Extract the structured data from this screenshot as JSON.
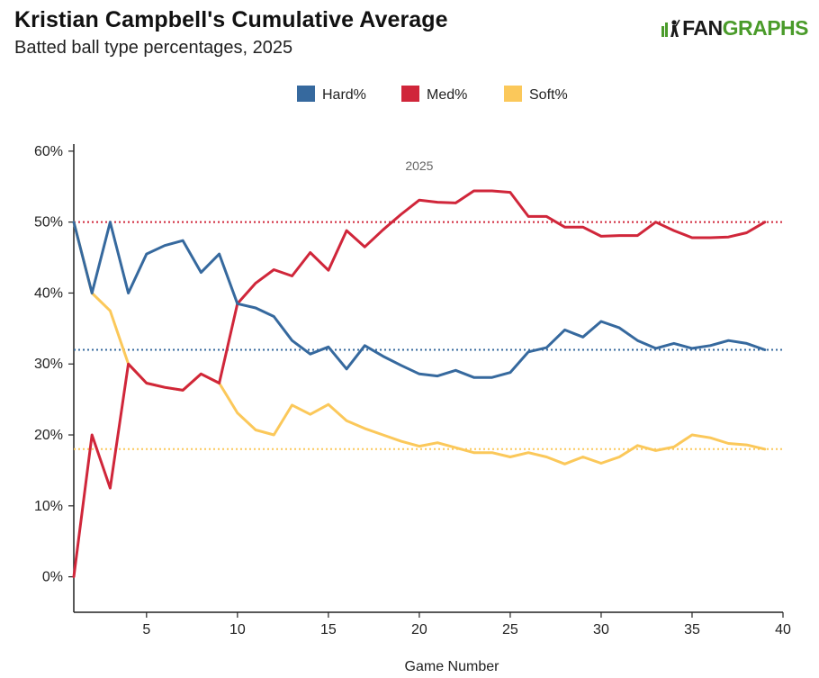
{
  "header": {
    "title": "Kristian Campbell's Cumulative Average",
    "subtitle": "Batted ball type percentages, 2025",
    "logo_part1": "FAN",
    "logo_part2": "GRAPHS"
  },
  "chart_data": {
    "type": "line",
    "title": "Kristian Campbell's Cumulative Average",
    "subtitle": "Batted ball type percentages, 2025",
    "xlabel": "Game Number",
    "ylabel": "",
    "xlim": [
      1,
      40
    ],
    "ylim": [
      -5,
      61
    ],
    "x_ticks": [
      5,
      10,
      15,
      20,
      25,
      30,
      35,
      40
    ],
    "y_ticks": [
      0,
      10,
      20,
      30,
      40,
      50,
      60
    ],
    "y_tick_format": "%",
    "legend_position": "top-center",
    "annotation": "2025",
    "x": [
      1,
      2,
      3,
      4,
      5,
      6,
      7,
      8,
      9,
      10,
      11,
      12,
      13,
      14,
      15,
      16,
      17,
      18,
      19,
      20,
      21,
      22,
      23,
      24,
      25,
      26,
      27,
      28,
      29,
      30,
      31,
      32,
      33,
      34,
      35,
      36,
      37,
      38,
      39
    ],
    "series": [
      {
        "name": "Hard%",
        "color": "#36699e",
        "values": [
          50.0,
          40.0,
          50.0,
          40.0,
          45.5,
          46.7,
          47.4,
          42.9,
          45.5,
          38.5,
          37.9,
          36.7,
          33.3,
          31.4,
          32.4,
          29.3,
          32.6,
          31.1,
          29.8,
          28.6,
          28.3,
          29.1,
          28.1,
          28.1,
          28.8,
          31.7,
          32.3,
          34.8,
          33.8,
          36.0,
          35.1,
          33.3,
          32.2,
          32.9,
          32.2,
          32.6,
          33.3,
          32.9,
          32.0
        ],
        "average": 32.0
      },
      {
        "name": "Med%",
        "color": "#d0263a",
        "values": [
          0.0,
          20.0,
          12.5,
          30.0,
          27.3,
          26.7,
          26.3,
          28.6,
          27.3,
          38.5,
          41.4,
          43.3,
          42.4,
          45.7,
          43.2,
          48.8,
          46.5,
          48.9,
          51.1,
          53.1,
          52.8,
          52.7,
          54.4,
          54.4,
          54.2,
          50.8,
          50.8,
          49.3,
          49.3,
          48.0,
          48.1,
          48.1,
          50.0,
          48.8,
          47.8,
          47.8,
          47.9,
          48.5,
          50.0
        ],
        "average": 50.0
      },
      {
        "name": "Soft%",
        "color": "#fbc85a",
        "values": [
          50.0,
          40.0,
          37.5,
          30.0,
          27.3,
          26.7,
          26.3,
          28.6,
          27.3,
          23.1,
          20.7,
          20.0,
          24.2,
          22.9,
          24.3,
          22.0,
          20.9,
          20.0,
          19.1,
          18.4,
          18.9,
          18.2,
          17.5,
          17.5,
          16.9,
          17.5,
          16.9,
          15.9,
          16.9,
          16.0,
          16.9,
          18.5,
          17.8,
          18.3,
          20.0,
          19.6,
          18.8,
          18.6,
          18.0
        ],
        "average": 18.0
      }
    ]
  }
}
